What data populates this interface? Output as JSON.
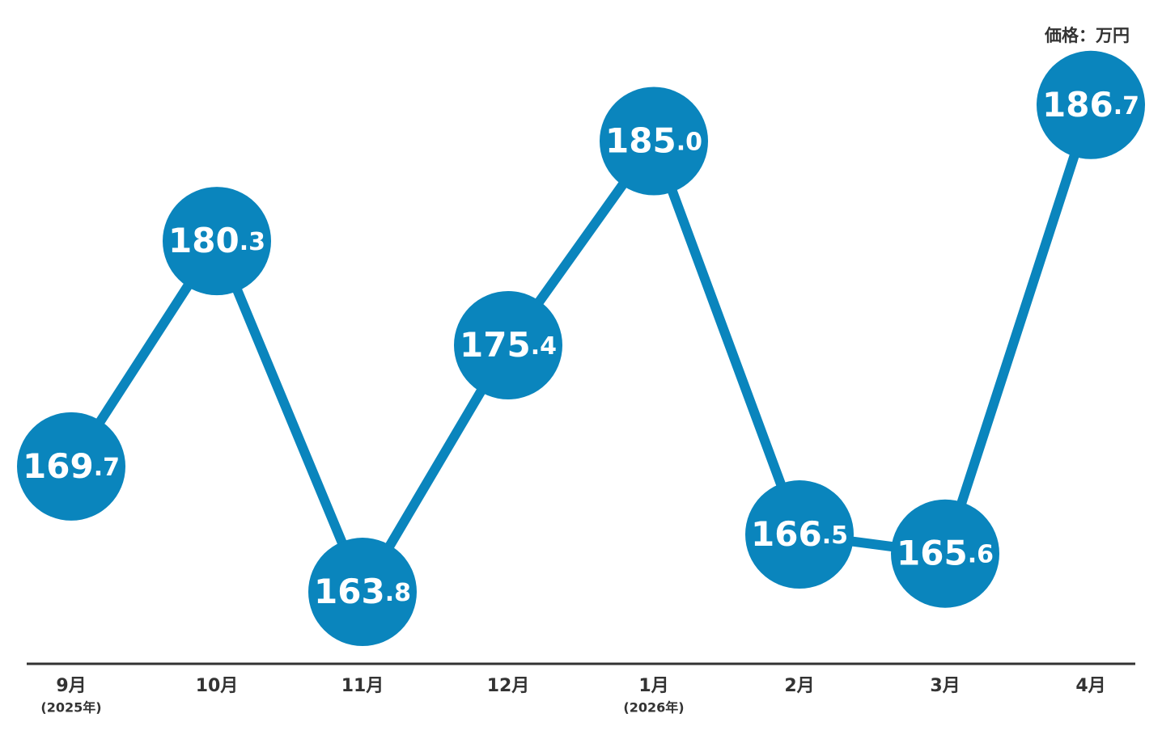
{
  "chart_data": {
    "type": "line",
    "unit_label": "価格：万円",
    "categories": [
      "9月",
      "10月",
      "11月",
      "12月",
      "1月",
      "2月",
      "3月",
      "4月"
    ],
    "category_sublabels": [
      "(2025年)",
      null,
      null,
      null,
      "(2026年)",
      null,
      null,
      null
    ],
    "values": [
      169.7,
      180.3,
      163.8,
      175.4,
      185.0,
      166.5,
      165.6,
      186.7
    ],
    "value_labels": [
      "169.7",
      "180.3",
      "163.8",
      "175.4",
      "185.0",
      "166.5",
      "165.6",
      "186.7"
    ],
    "color": "#0a85bd",
    "ylim": [
      160,
      190
    ]
  }
}
